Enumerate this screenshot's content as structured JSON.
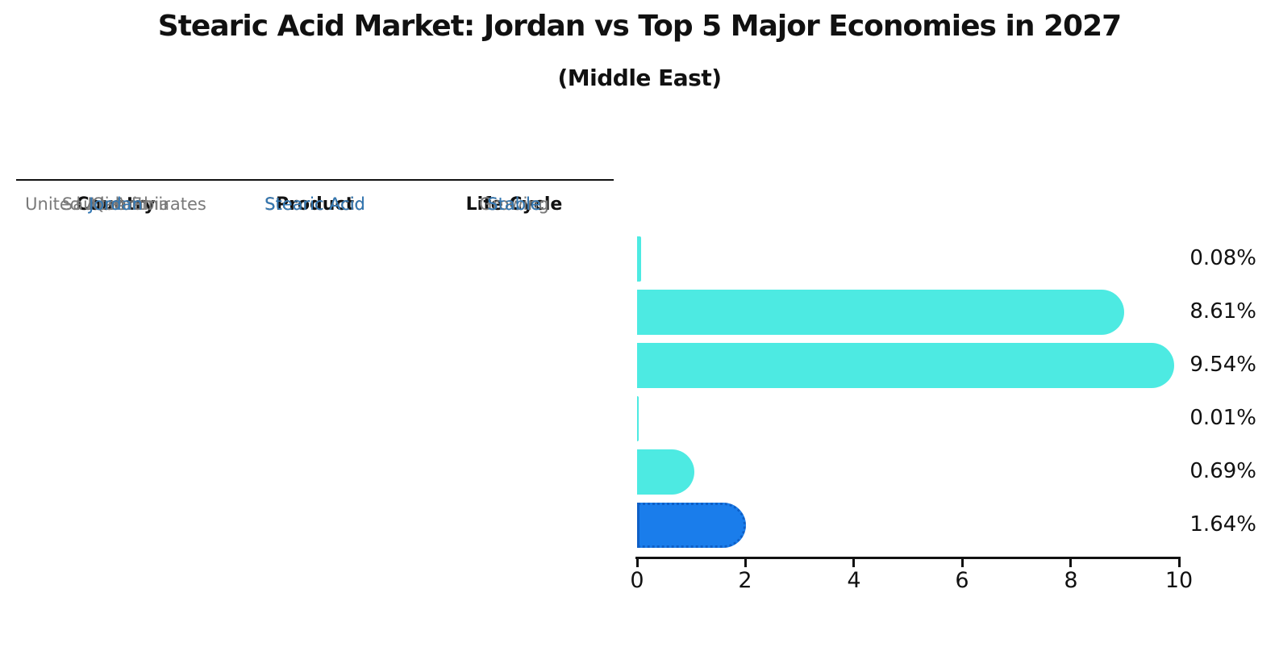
{
  "title": "Stearic Acid Market: Jordan vs Top 5 Major Economies in 2027",
  "subtitle": "(Middle East)",
  "table": {
    "headers": [
      "Country",
      "Product",
      "Life Cycle"
    ],
    "rows": [
      {
        "country": "Saudi Arabia",
        "product": "Stearic Acid",
        "life_cycle": "Stable",
        "highlight": false
      },
      {
        "country": "United Arab Emirates",
        "product": "Stearic Acid",
        "life_cycle": "Growing",
        "highlight": false
      },
      {
        "country": "Iran",
        "product": "Stearic Acid",
        "life_cycle": "Growing",
        "highlight": false
      },
      {
        "country": "Qatar",
        "product": "Stearic Acid",
        "life_cycle": "Stable",
        "highlight": false
      },
      {
        "country": "Kuwait",
        "product": "Stearic Acid",
        "life_cycle": "Stable",
        "highlight": false
      },
      {
        "country": "Jordan",
        "product": "Stearic Acid",
        "life_cycle": "Stable",
        "highlight": true
      }
    ]
  },
  "chart_data": {
    "type": "bar",
    "orientation": "horizontal",
    "title": "Stearic Acid Market: Jordan vs Top 5 Major Economies in 2027",
    "subtitle": "(Middle East)",
    "categories": [
      "Saudi Arabia",
      "United Arab Emirates",
      "Iran",
      "Qatar",
      "Kuwait",
      "Jordan"
    ],
    "values": [
      0.08,
      8.61,
      9.54,
      0.01,
      0.69,
      1.64
    ],
    "value_labels": [
      "0.08%",
      "8.61%",
      "9.54%",
      "0.01%",
      "0.69%",
      "1.64%"
    ],
    "xlim": [
      0,
      10
    ],
    "x_ticks": [
      "0",
      "2",
      "4",
      "6",
      "8",
      "10"
    ],
    "grid": false,
    "legend": "none",
    "highlight_index": 5
  },
  "colors": {
    "bar": "#4DEAE2",
    "highlight_bar": "#1A7DEB",
    "highlight_bar_border": "#0E5FC6",
    "highlight_text": "#3378B4",
    "table_text": "#7a7a7a",
    "header_text": "#111111",
    "axis": "#111111"
  }
}
